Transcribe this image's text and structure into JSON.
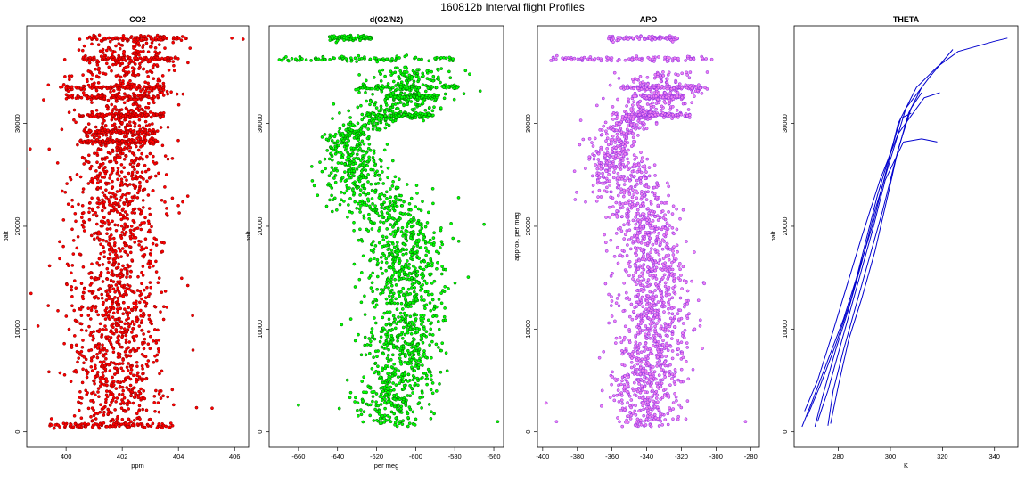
{
  "figure": {
    "title": "160812b   Interval flight Profiles"
  },
  "chart_data": [
    {
      "type": "scatter",
      "title": "CO2",
      "xlabel": "ppm",
      "ylabel": "palt",
      "xlim": [
        398.6,
        406.5
      ],
      "ylim": [
        -1500,
        39500
      ],
      "xticks": [
        400,
        402,
        404,
        406
      ],
      "yticks": [
        0,
        10000,
        20000,
        30000
      ],
      "colors": {
        "fill": "#ff0000",
        "edge": "#8b0000"
      },
      "profile": [
        {
          "y": 500,
          "x": 401.8,
          "spread": 0.85
        },
        {
          "y": 5000,
          "x": 401.8,
          "spread": 0.8
        },
        {
          "y": 10000,
          "x": 401.9,
          "spread": 0.85
        },
        {
          "y": 15000,
          "x": 401.9,
          "spread": 0.8
        },
        {
          "y": 20000,
          "x": 401.8,
          "spread": 0.75
        },
        {
          "y": 25000,
          "x": 401.9,
          "spread": 0.8
        },
        {
          "y": 30000,
          "x": 402.0,
          "spread": 0.8
        },
        {
          "y": 34000,
          "x": 402.1,
          "spread": 0.85
        },
        {
          "y": 38300,
          "x": 402.4,
          "spread": 0.9
        }
      ],
      "level_bands": [
        {
          "y": 38300,
          "x_min": 400.8,
          "x_max": 404.3
        },
        {
          "y": 36300,
          "x_min": 400.6,
          "x_max": 404.0
        },
        {
          "y": 33500,
          "x_min": 399.8,
          "x_max": 403.5
        },
        {
          "y": 32600,
          "x_min": 400.0,
          "x_max": 403.3
        },
        {
          "y": 30800,
          "x_min": 400.4,
          "x_max": 403.5
        },
        {
          "y": 29200,
          "x_min": 400.6,
          "x_max": 403.3
        },
        {
          "y": 28200,
          "x_min": 400.5,
          "x_max": 403.4
        },
        {
          "y": 600,
          "x_min": 399.4,
          "x_max": 403.8
        }
      ],
      "outliers": [
        {
          "x": 405.9,
          "y": 38300
        },
        {
          "x": 406.3,
          "y": 38200
        },
        {
          "x": 405.2,
          "y": 2300
        },
        {
          "x": 399.2,
          "y": 32300
        },
        {
          "x": 399.4,
          "y": 27500
        },
        {
          "x": 399.0,
          "y": 10300
        }
      ]
    },
    {
      "type": "scatter",
      "title": "d(O2/N2)",
      "xlabel": "per meg",
      "ylabel": "palt",
      "xlim": [
        -675,
        -555
      ],
      "ylim": [
        -1500,
        39500
      ],
      "xticks": [
        -660,
        -640,
        -620,
        -600,
        -580,
        -560
      ],
      "yticks": [
        0,
        10000,
        20000,
        30000
      ],
      "colors": {
        "fill": "#00ff00",
        "edge": "#006400"
      },
      "profile": [
        {
          "y": 500,
          "x": -612,
          "spread": 9
        },
        {
          "y": 3000,
          "x": -614,
          "spread": 10
        },
        {
          "y": 6000,
          "x": -608,
          "spread": 10
        },
        {
          "y": 10000,
          "x": -606,
          "spread": 10
        },
        {
          "y": 15000,
          "x": -604,
          "spread": 10
        },
        {
          "y": 19000,
          "x": -607,
          "spread": 10
        },
        {
          "y": 22000,
          "x": -618,
          "spread": 12
        },
        {
          "y": 24000,
          "x": -627,
          "spread": 12
        },
        {
          "y": 27000,
          "x": -634,
          "spread": 8
        },
        {
          "y": 29000,
          "x": -634,
          "spread": 5
        },
        {
          "y": 31000,
          "x": -610,
          "spread": 10
        },
        {
          "y": 33000,
          "x": -606,
          "spread": 12
        },
        {
          "y": 35500,
          "x": -600,
          "spread": 10
        }
      ],
      "level_bands": [
        {
          "y": 38300,
          "x_min": -645,
          "x_max": -622
        },
        {
          "y": 36300,
          "x_min": -670,
          "x_max": -580
        },
        {
          "y": 33500,
          "x_min": -630,
          "x_max": -578
        },
        {
          "y": 32600,
          "x_min": -615,
          "x_max": -588
        },
        {
          "y": 30800,
          "x_min": -625,
          "x_max": -590
        }
      ],
      "outliers": [
        {
          "x": -565,
          "y": 20200
        },
        {
          "x": -558,
          "y": 1000
        },
        {
          "x": -643,
          "y": 23000
        },
        {
          "x": -660,
          "y": 2600
        }
      ]
    },
    {
      "type": "scatter",
      "title": "APO",
      "xlabel": "",
      "ylabel": "approx. per meg",
      "xlim": [
        -403,
        -275
      ],
      "ylim": [
        -1500,
        39500
      ],
      "xticks": [
        -400,
        -380,
        -360,
        -340,
        -320,
        -300,
        -280
      ],
      "yticks": [
        0,
        10000,
        20000,
        30000
      ],
      "colors": {
        "fill": "#ee82ee",
        "edge": "#8a2be2"
      },
      "profile": [
        {
          "y": 500,
          "x": -340,
          "spread": 9
        },
        {
          "y": 3000,
          "x": -342,
          "spread": 10
        },
        {
          "y": 7000,
          "x": -338,
          "spread": 10
        },
        {
          "y": 11000,
          "x": -336,
          "spread": 10
        },
        {
          "y": 15000,
          "x": -334,
          "spread": 10
        },
        {
          "y": 19000,
          "x": -338,
          "spread": 10
        },
        {
          "y": 22000,
          "x": -346,
          "spread": 11
        },
        {
          "y": 25000,
          "x": -354,
          "spread": 10
        },
        {
          "y": 28000,
          "x": -360,
          "spread": 6
        },
        {
          "y": 30000,
          "x": -352,
          "spread": 8
        },
        {
          "y": 32000,
          "x": -335,
          "spread": 10
        },
        {
          "y": 35000,
          "x": -332,
          "spread": 12
        }
      ],
      "level_bands": [
        {
          "y": 38300,
          "x_min": -362,
          "x_max": -322
        },
        {
          "y": 36300,
          "x_min": -398,
          "x_max": -302
        },
        {
          "y": 33500,
          "x_min": -355,
          "x_max": -305
        },
        {
          "y": 32600,
          "x_min": -348,
          "x_max": -318
        },
        {
          "y": 30800,
          "x_min": -355,
          "x_max": -315
        }
      ],
      "outliers": [
        {
          "x": -283,
          "y": 1000
        },
        {
          "x": -392,
          "y": 1000
        },
        {
          "x": -398,
          "y": 2800
        },
        {
          "x": -378,
          "y": 30300
        }
      ]
    },
    {
      "type": "line",
      "title": "THETA",
      "xlabel": "K",
      "ylabel": "palt",
      "xlim": [
        263,
        349
      ],
      "ylim": [
        -1500,
        39500
      ],
      "xticks": [
        280,
        300,
        320,
        340
      ],
      "yticks": [
        0,
        10000,
        20000,
        30000
      ],
      "colors": {
        "line": "#0000cd"
      },
      "series": [
        {
          "points": [
            [
              266,
              500
            ],
            [
              270,
              3000
            ],
            [
              276,
              7000
            ],
            [
              282,
              11000
            ],
            [
              287,
              15000
            ],
            [
              293,
              20000
            ],
            [
              298,
              25000
            ],
            [
              303,
              30000
            ],
            [
              310,
              33500
            ],
            [
              318,
              35500
            ],
            [
              326,
              37000
            ],
            [
              340,
              38000
            ],
            [
              345,
              38300
            ]
          ]
        },
        {
          "points": [
            [
              271,
              500
            ],
            [
              274,
              3500
            ],
            [
              279,
              8000
            ],
            [
              284,
              12000
            ],
            [
              289,
              16500
            ],
            [
              294,
              21500
            ],
            [
              300,
              26500
            ],
            [
              306,
              31500
            ],
            [
              315,
              34500
            ],
            [
              324,
              37200
            ]
          ]
        },
        {
          "points": [
            [
              276,
              600
            ],
            [
              278,
              4000
            ],
            [
              282,
              8000
            ],
            [
              287,
              12500
            ],
            [
              292,
              17000
            ],
            [
              297,
              21500
            ],
            [
              302,
              26500
            ],
            [
              307,
              31000
            ],
            [
              312,
              33500
            ]
          ]
        },
        {
          "points": [
            [
              277,
              800
            ],
            [
              280,
              4500
            ],
            [
              284,
              9000
            ],
            [
              289,
              13000
            ],
            [
              294,
              17500
            ],
            [
              299,
              23000
            ],
            [
              303,
              27500
            ],
            [
              308,
              31500
            ],
            [
              312,
              33000
            ]
          ]
        },
        {
          "points": [
            [
              268,
              1500
            ],
            [
              273,
              4500
            ],
            [
              279,
              8500
            ],
            [
              285,
              13000
            ],
            [
              290,
              18000
            ],
            [
              295,
              23000
            ],
            [
              301,
              28000
            ],
            [
              304,
              30500
            ],
            [
              308,
              31000
            ]
          ]
        },
        {
          "points": [
            [
              272,
              1000
            ],
            [
              276,
              4000
            ],
            [
              282,
              9500
            ],
            [
              287,
              14000
            ],
            [
              293,
              19500
            ],
            [
              298,
              24500
            ],
            [
              305,
              28200
            ],
            [
              312,
              28500
            ],
            [
              318,
              28200
            ]
          ]
        },
        {
          "points": [
            [
              267,
              2000
            ],
            [
              272,
              5000
            ],
            [
              277,
              9000
            ],
            [
              283,
              14000
            ],
            [
              289,
              19000
            ],
            [
              296,
              24500
            ],
            [
              303,
              29000
            ],
            [
              313,
              32500
            ],
            [
              319,
              33000
            ]
          ]
        }
      ]
    }
  ]
}
